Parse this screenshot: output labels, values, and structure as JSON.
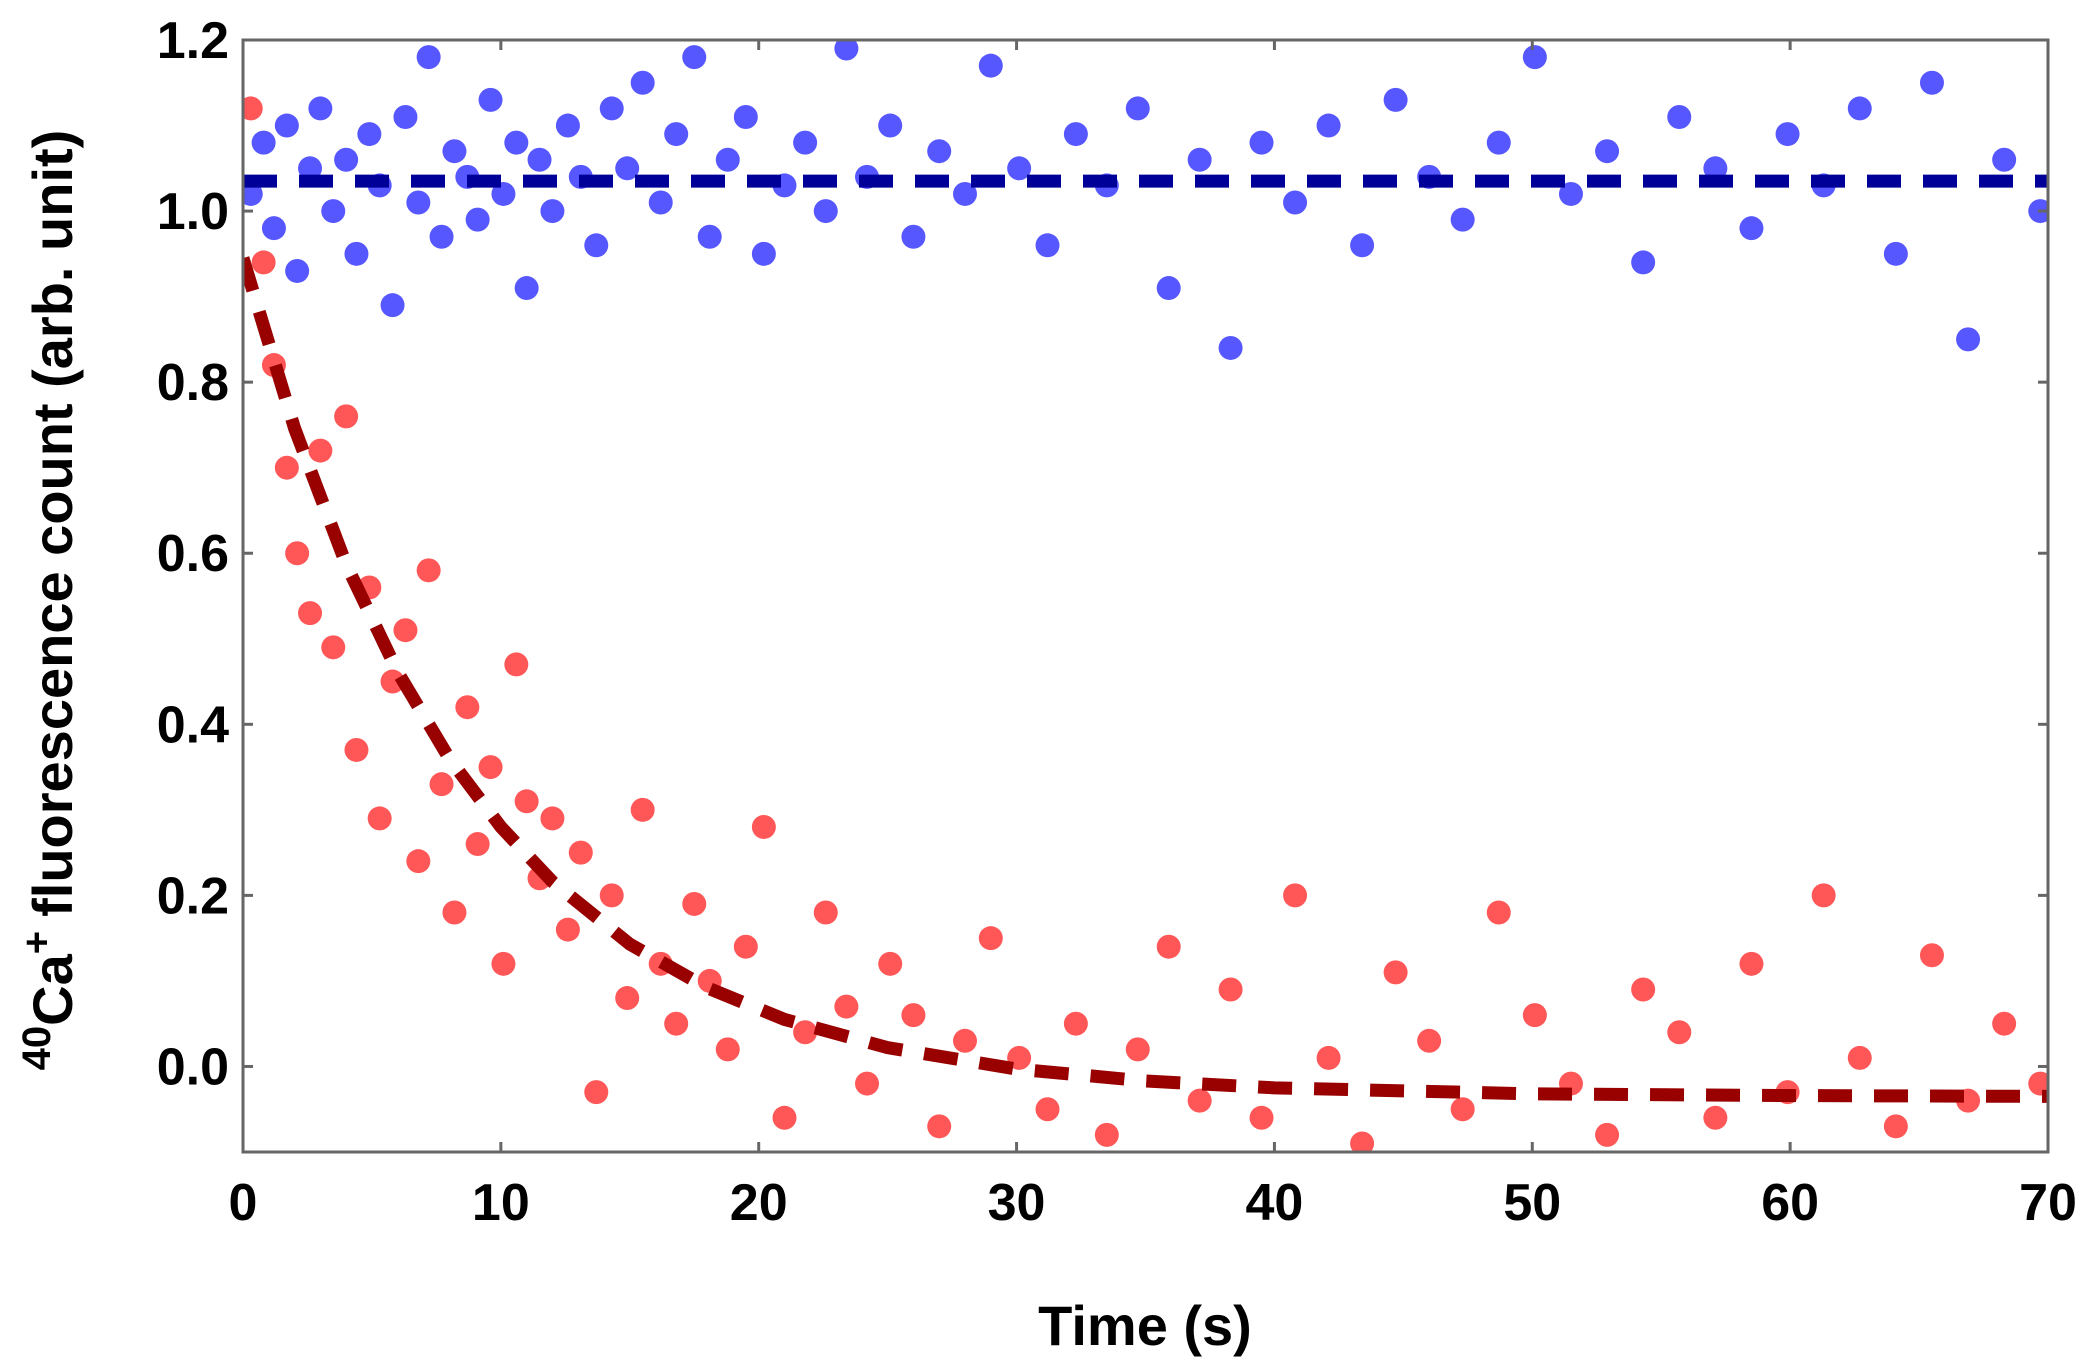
{
  "chart_data": {
    "type": "scatter",
    "x_label": "Time (s)",
    "y_label": {
      "isotope": "40",
      "element": "Ca",
      "charge": "+",
      "text": "fluorescence count (arb. unit)"
    },
    "xlim": [
      0,
      70
    ],
    "xticks": [
      0,
      10,
      20,
      30,
      40,
      50,
      60,
      70
    ],
    "ylim": [
      -0.1,
      1.2
    ],
    "yticks": [
      {
        "value": 0,
        "label": "0.0"
      },
      0.2,
      0.4,
      0.6,
      0.8,
      {
        "value": 1,
        "label": "1.0"
      },
      1.2
    ],
    "series": [
      {
        "color": "#ff5757",
        "style": "points",
        "x": [
          0.3,
          0.8,
          1.2,
          1.7,
          2.1,
          2.6,
          3.0,
          3.5,
          4.0,
          4.4,
          4.9,
          5.3,
          5.8,
          6.3,
          6.8,
          7.2,
          7.7,
          8.2,
          8.7,
          9.1,
          9.6,
          10.1,
          10.6,
          11.0,
          11.5,
          12.0,
          12.6,
          13.1,
          13.7,
          14.3,
          14.9,
          15.5,
          16.2,
          16.8,
          17.5,
          18.1,
          18.8,
          19.5,
          20.2,
          21.0,
          21.8,
          22.6,
          23.4,
          24.2,
          25.1,
          26.0,
          27.0,
          28.0,
          29.0,
          30.1,
          31.2,
          32.3,
          33.5,
          34.7,
          35.9,
          37.1,
          38.3,
          39.5,
          40.8,
          42.1,
          43.4,
          44.7,
          46.0,
          47.3,
          48.7,
          50.1,
          51.5,
          52.9,
          54.3,
          55.7,
          57.1,
          58.5,
          59.9,
          61.3,
          62.7,
          64.1,
          65.5,
          66.9,
          68.3,
          69.7
        ],
        "values": [
          1.12,
          0.94,
          0.82,
          0.7,
          0.6,
          0.53,
          0.72,
          0.49,
          0.76,
          0.37,
          0.56,
          0.29,
          0.45,
          0.51,
          0.24,
          0.58,
          0.33,
          0.18,
          0.42,
          0.26,
          0.35,
          0.12,
          0.47,
          0.31,
          0.22,
          0.29,
          0.16,
          0.25,
          -0.03,
          0.2,
          0.08,
          0.3,
          0.12,
          0.05,
          0.19,
          0.1,
          0.02,
          0.14,
          0.28,
          -0.06,
          0.04,
          0.18,
          0.07,
          -0.02,
          0.12,
          0.06,
          -0.07,
          0.03,
          0.15,
          0.01,
          -0.05,
          0.05,
          -0.08,
          0.02,
          0.14,
          -0.04,
          0.09,
          -0.06,
          0.2,
          0.01,
          -0.09,
          0.11,
          0.03,
          -0.05,
          0.18,
          0.06,
          -0.02,
          -0.08,
          0.09,
          0.04,
          -0.06,
          0.12,
          -0.03,
          0.2,
          0.01,
          -0.07,
          0.13,
          -0.04,
          0.05,
          -0.02
        ]
      },
      {
        "color": "#5757ff",
        "style": "points",
        "x": [
          0.3,
          0.8,
          1.2,
          1.7,
          2.1,
          2.6,
          3.0,
          3.5,
          4.0,
          4.4,
          4.9,
          5.3,
          5.8,
          6.3,
          6.8,
          7.2,
          7.7,
          8.2,
          8.7,
          9.1,
          9.6,
          10.1,
          10.6,
          11.0,
          11.5,
          12.0,
          12.6,
          13.1,
          13.7,
          14.3,
          14.9,
          15.5,
          16.2,
          16.8,
          17.5,
          18.1,
          18.8,
          19.5,
          20.2,
          21.0,
          21.8,
          22.6,
          23.4,
          24.2,
          25.1,
          26.0,
          27.0,
          28.0,
          29.0,
          30.1,
          31.2,
          32.3,
          33.5,
          34.7,
          35.9,
          37.1,
          38.3,
          39.5,
          40.8,
          42.1,
          43.4,
          44.7,
          46.0,
          47.3,
          48.7,
          50.1,
          51.5,
          52.9,
          54.3,
          55.7,
          57.1,
          58.5,
          59.9,
          61.3,
          62.7,
          64.1,
          65.5,
          66.9,
          68.3,
          69.7
        ],
        "values": [
          1.02,
          1.08,
          0.98,
          1.1,
          0.93,
          1.05,
          1.12,
          1.0,
          1.06,
          0.95,
          1.09,
          1.03,
          0.89,
          1.11,
          1.01,
          1.18,
          0.97,
          1.07,
          1.04,
          0.99,
          1.13,
          1.02,
          1.08,
          0.91,
          1.06,
          1.0,
          1.1,
          1.04,
          0.96,
          1.12,
          1.05,
          1.15,
          1.01,
          1.09,
          1.18,
          0.97,
          1.06,
          1.11,
          0.95,
          1.03,
          1.08,
          1.0,
          1.19,
          1.04,
          1.1,
          0.97,
          1.07,
          1.02,
          1.17,
          1.05,
          0.96,
          1.09,
          1.03,
          1.12,
          0.91,
          1.06,
          0.84,
          1.08,
          1.01,
          1.1,
          0.96,
          1.13,
          1.04,
          0.99,
          1.08,
          1.18,
          1.02,
          1.07,
          0.94,
          1.11,
          1.05,
          0.98,
          1.09,
          1.03,
          1.12,
          0.95,
          1.15,
          0.85,
          1.06,
          1.0
        ]
      },
      {
        "color": "#990000",
        "style": "dashed",
        "x": [
          0,
          2,
          4,
          6,
          8,
          10,
          12,
          15,
          18,
          21,
          25,
          30,
          35,
          40,
          50,
          60,
          70
        ],
        "values": [
          0.945,
          0.746,
          0.587,
          0.461,
          0.36,
          0.28,
          0.216,
          0.143,
          0.092,
          0.055,
          0.022,
          -0.003,
          -0.017,
          -0.025,
          -0.032,
          -0.034,
          -0.035
        ]
      },
      {
        "color": "#000099",
        "style": "dashed",
        "x": [
          0,
          70
        ],
        "values": [
          1.035,
          1.035
        ]
      }
    ]
  }
}
